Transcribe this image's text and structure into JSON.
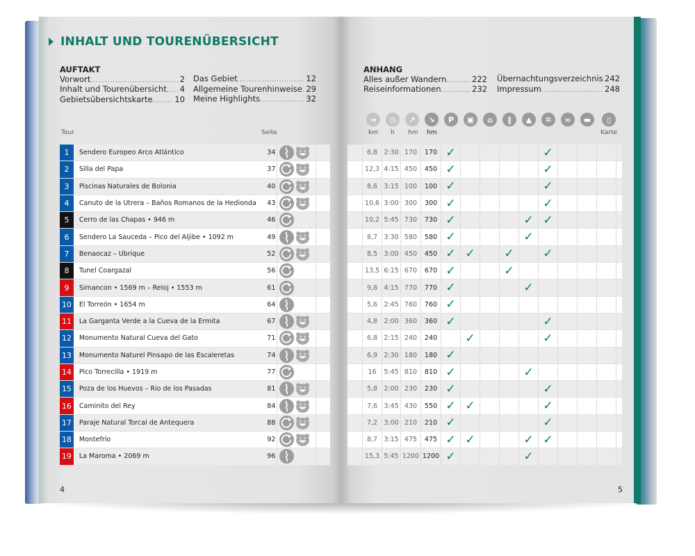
{
  "title": "INHALT UND TOURENÜBERSICHT",
  "auftakt": {
    "heading": "AUFTAKT",
    "items": [
      {
        "label": "Vorwort",
        "page": "2"
      },
      {
        "label": "Inhalt und Tourenübersicht",
        "page": "4"
      },
      {
        "label": "Gebietsübersichtskarte",
        "page": "10"
      },
      {
        "label": "Das Gebiet",
        "page": "12"
      },
      {
        "label": "Allgemeine Tourenhinweise",
        "page": "29"
      },
      {
        "label": "Meine Highlights",
        "page": "32"
      }
    ]
  },
  "anhang": {
    "heading": "ANHANG",
    "items": [
      {
        "label": "Alles außer Wandern",
        "page": "222"
      },
      {
        "label": "Reiseinformationen",
        "page": "232"
      },
      {
        "label": "Übernachtungsverzeichnis",
        "page": "242"
      },
      {
        "label": "Impressum",
        "page": "248"
      }
    ]
  },
  "columns": {
    "tour": "Tour",
    "seite": "Seite",
    "km": "km",
    "h": "h",
    "hm_up": "hm",
    "hm_down": "hm",
    "karte": "Karte",
    "icons": [
      "signpost-icon",
      "clock-icon",
      "ascent-arrow-icon",
      "descent-arrow-icon",
      "parking-icon",
      "bus-icon",
      "cable-car-icon",
      "restaurant-icon",
      "hut-icon",
      "winter-icon",
      "bike-icon",
      "bed-icon",
      "map-icon"
    ]
  },
  "colors": {
    "accent": "#0f7a68",
    "blue": "#0a5aa8",
    "black": "#111111",
    "red": "#d40f14"
  },
  "feature_columns": [
    "parking",
    "bus",
    "cable_car",
    "restaurant",
    "hut",
    "winter",
    "bike",
    "bed",
    "karte"
  ],
  "tours": [
    {
      "n": "1",
      "color": "blue",
      "name": "Sendero Europeo Arco Atlántico",
      "page": "34",
      "route": "linear",
      "family": true,
      "km": "6,8",
      "h": "2:30",
      "up": "170",
      "down": "170",
      "f": [
        "parking",
        "winter"
      ]
    },
    {
      "n": "2",
      "color": "blue",
      "name": "Silla del Papa",
      "page": "37",
      "route": "loop",
      "family": true,
      "km": "12,3",
      "h": "4:15",
      "up": "450",
      "down": "450",
      "f": [
        "parking",
        "winter"
      ]
    },
    {
      "n": "3",
      "color": "blue",
      "name": "Piscinas Naturales de Bolonia",
      "page": "40",
      "route": "loop",
      "family": true,
      "km": "8,6",
      "h": "3:15",
      "up": "100",
      "down": "100",
      "f": [
        "parking",
        "winter"
      ]
    },
    {
      "n": "4",
      "color": "blue",
      "name": "Canuto de la Utrera – Baños Romanos de la Hedionda",
      "page": "43",
      "route": "loop",
      "family": true,
      "km": "10,6",
      "h": "3:00",
      "up": "300",
      "down": "300",
      "f": [
        "parking",
        "winter"
      ]
    },
    {
      "n": "5",
      "color": "black",
      "name": "Cerro de las Chapas • 946 m",
      "page": "46",
      "route": "loop",
      "family": false,
      "km": "10,2",
      "h": "5:45",
      "up": "730",
      "down": "730",
      "f": [
        "parking",
        "hut",
        "winter"
      ]
    },
    {
      "n": "6",
      "color": "blue",
      "name": "Sendero La Sauceda – Pico del Aljibe • 1092 m",
      "page": "49",
      "route": "linear",
      "family": true,
      "km": "8,7",
      "h": "3:30",
      "up": "580",
      "down": "580",
      "f": [
        "parking",
        "hut"
      ]
    },
    {
      "n": "7",
      "color": "blue",
      "name": "Benaocaz – Ubrique",
      "page": "52",
      "route": "loop",
      "family": true,
      "km": "8,5",
      "h": "3:00",
      "up": "450",
      "down": "450",
      "f": [
        "parking",
        "bus",
        "restaurant",
        "winter"
      ]
    },
    {
      "n": "8",
      "color": "black",
      "name": "Tunel Coargazal",
      "page": "56",
      "route": "loop",
      "family": false,
      "km": "13,5",
      "h": "6:15",
      "up": "670",
      "down": "670",
      "f": [
        "parking",
        "restaurant"
      ]
    },
    {
      "n": "9",
      "color": "red",
      "name": "Simancon • 1569 m – Reloj • 1553 m",
      "page": "61",
      "route": "loop",
      "family": false,
      "km": "9,8",
      "h": "4:15",
      "up": "770",
      "down": "770",
      "f": [
        "parking",
        "hut"
      ]
    },
    {
      "n": "10",
      "color": "blue",
      "name": "El Torreón • 1654 m",
      "page": "64",
      "route": "linear",
      "family": false,
      "km": "5,6",
      "h": "2:45",
      "up": "760",
      "down": "760",
      "f": [
        "parking"
      ]
    },
    {
      "n": "11",
      "color": "red",
      "name": "La Garganta Verde a la Cueva de la Ermita",
      "page": "67",
      "route": "linear",
      "family": true,
      "km": "4,8",
      "h": "2:00",
      "up": "360",
      "down": "360",
      "f": [
        "parking",
        "winter"
      ]
    },
    {
      "n": "12",
      "color": "blue",
      "name": "Monumento Natural Cueva del Gato",
      "page": "71",
      "route": "loop",
      "family": true,
      "km": "6,8",
      "h": "2:15",
      "up": "240",
      "down": "240",
      "f": [
        "bus",
        "winter"
      ]
    },
    {
      "n": "13",
      "color": "blue",
      "name": "Monumento Naturel Pinsapo de las Escaleretas",
      "page": "74",
      "route": "linear",
      "family": true,
      "km": "6,9",
      "h": "2:30",
      "up": "180",
      "down": "180",
      "f": [
        "parking"
      ]
    },
    {
      "n": "14",
      "color": "red",
      "name": "Pico Torrecilla • 1919 m",
      "page": "77",
      "route": "loop",
      "family": false,
      "km": "16",
      "h": "5:45",
      "up": "810",
      "down": "810",
      "f": [
        "parking",
        "hut"
      ]
    },
    {
      "n": "15",
      "color": "blue",
      "name": "Poza de los Huevos – Rio de los Pasadas",
      "page": "81",
      "route": "linear",
      "family": true,
      "km": "5,8",
      "h": "2:00",
      "up": "230",
      "down": "230",
      "f": [
        "parking",
        "winter"
      ]
    },
    {
      "n": "16",
      "color": "red",
      "name": "Caminito del Rey",
      "page": "84",
      "route": "linear",
      "family": true,
      "km": "7,6",
      "h": "3:45",
      "up": "430",
      "down": "550",
      "f": [
        "parking",
        "bus",
        "winter"
      ]
    },
    {
      "n": "17",
      "color": "blue",
      "name": "Paraje Natural Torcal de Antequera",
      "page": "88",
      "route": "loop",
      "family": true,
      "km": "7,2",
      "h": "3:00",
      "up": "210",
      "down": "210",
      "f": [
        "parking",
        "winter"
      ]
    },
    {
      "n": "18",
      "color": "blue",
      "name": "Montefrío",
      "page": "92",
      "route": "loop",
      "family": true,
      "km": "8,7",
      "h": "3:15",
      "up": "475",
      "down": "475",
      "f": [
        "parking",
        "bus",
        "hut",
        "winter"
      ]
    },
    {
      "n": "19",
      "color": "red",
      "name": "La Maroma • 2069 m",
      "page": "96",
      "route": "linear",
      "family": false,
      "km": "15,3",
      "h": "5:45",
      "up": "1200",
      "down": "1200",
      "f": [
        "parking",
        "hut"
      ]
    }
  ],
  "check_mark": "✓",
  "page_left": "4",
  "page_right": "5"
}
